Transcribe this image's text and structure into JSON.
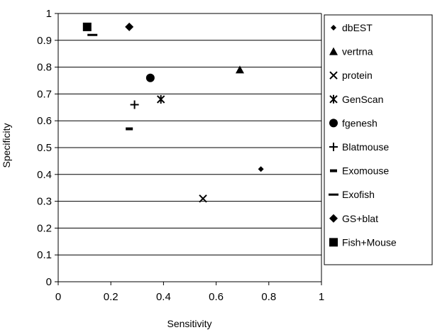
{
  "chart_data": {
    "type": "scatter",
    "title": "",
    "xlabel": "Sensitivity",
    "ylabel": "Specificity",
    "xlim": [
      0,
      1
    ],
    "ylim": [
      0,
      1
    ],
    "x_ticks": [
      "0",
      "0.2",
      "0.4",
      "0.6",
      "0.8",
      "1"
    ],
    "y_ticks": [
      "0",
      "0.1",
      "0.2",
      "0.3",
      "0.4",
      "0.5",
      "0.6",
      "0.7",
      "0.8",
      "0.9",
      "1"
    ],
    "grid": "horizontal",
    "legend_position": "right",
    "series": [
      {
        "name": "dbEST",
        "marker": "small-diamond",
        "points": [
          {
            "x": 0.77,
            "y": 0.42
          }
        ]
      },
      {
        "name": "vertrna",
        "marker": "triangle",
        "points": [
          {
            "x": 0.69,
            "y": 0.79
          }
        ]
      },
      {
        "name": "protein",
        "marker": "x",
        "points": [
          {
            "x": 0.55,
            "y": 0.31
          }
        ]
      },
      {
        "name": "GenScan",
        "marker": "asterisk",
        "points": [
          {
            "x": 0.39,
            "y": 0.68
          }
        ]
      },
      {
        "name": "fgenesh",
        "marker": "circle",
        "points": [
          {
            "x": 0.35,
            "y": 0.76
          }
        ]
      },
      {
        "name": "Blatmouse",
        "marker": "plus",
        "points": [
          {
            "x": 0.29,
            "y": 0.66
          }
        ]
      },
      {
        "name": "Exomouse",
        "marker": "short-dash",
        "points": [
          {
            "x": 0.27,
            "y": 0.57
          }
        ]
      },
      {
        "name": "Exofish",
        "marker": "long-dash",
        "points": [
          {
            "x": 0.13,
            "y": 0.92
          }
        ]
      },
      {
        "name": "GS+blat",
        "marker": "diamond",
        "points": [
          {
            "x": 0.27,
            "y": 0.95
          }
        ]
      },
      {
        "name": "Fish+Mouse",
        "marker": "square",
        "points": [
          {
            "x": 0.11,
            "y": 0.95
          }
        ]
      }
    ]
  }
}
